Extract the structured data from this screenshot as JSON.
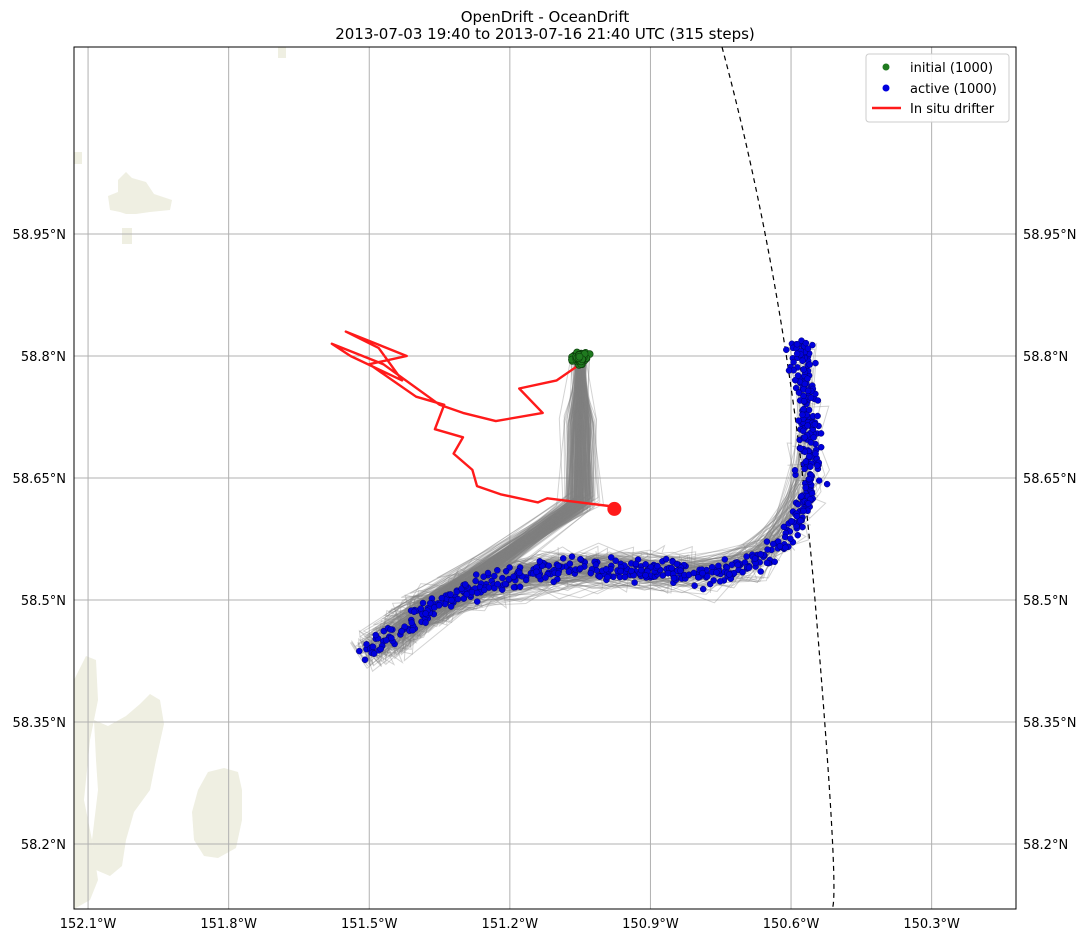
{
  "title": "OpenDrift - OceanDrift",
  "subtitle": "2013-07-03 19:40 to 2013-07-16 21:40 UTC (315 steps)",
  "colors": {
    "land": "#efefe2",
    "trajectory": "#808080",
    "initial": "#1f7a1f",
    "active": "#0000dd",
    "drifter": "#ff1a1a"
  },
  "chart_data": {
    "type": "scatter",
    "projection": "lon-lat map",
    "xlim": [
      -152.13,
      -150.12
    ],
    "ylim": [
      58.12,
      59.18
    ],
    "grid": true,
    "legend_placement": "top-right",
    "x_ticks": [
      {
        "value": -152.1,
        "label": "152.1°W"
      },
      {
        "value": -151.8,
        "label": "151.8°W"
      },
      {
        "value": -151.5,
        "label": "151.5°W"
      },
      {
        "value": -151.2,
        "label": "151.2°W"
      },
      {
        "value": -150.9,
        "label": "150.9°W"
      },
      {
        "value": -150.6,
        "label": "150.6°W"
      },
      {
        "value": -150.3,
        "label": "150.3°W"
      }
    ],
    "y_ticks": [
      {
        "value": 58.95,
        "label": "58.95°N"
      },
      {
        "value": 58.8,
        "label": "58.8°N"
      },
      {
        "value": 58.65,
        "label": "58.65°N"
      },
      {
        "value": 58.5,
        "label": "58.5°N"
      },
      {
        "value": 58.35,
        "label": "58.35°N"
      },
      {
        "value": 58.2,
        "label": "58.2°N"
      }
    ],
    "legend": [
      {
        "label": "initial (1000)",
        "kind": "marker",
        "color": "#1f7a1f"
      },
      {
        "label": "active (1000)",
        "kind": "marker",
        "color": "#0000dd"
      },
      {
        "label": "In situ drifter",
        "kind": "line",
        "color": "#ff1a1a"
      }
    ],
    "series": [
      {
        "name": "initial (1000)",
        "count": 1000,
        "center": [
          -151.05,
          58.798
        ],
        "spread": [
          0.025,
          0.012
        ]
      },
      {
        "name": "active (1000)",
        "count": 1000,
        "path": [
          [
            -151.52,
            58.43
          ],
          [
            -151.44,
            58.46
          ],
          [
            -151.35,
            58.5
          ],
          [
            -151.25,
            58.52
          ],
          [
            -151.12,
            58.535
          ],
          [
            -151.0,
            58.54
          ],
          [
            -150.88,
            58.535
          ],
          [
            -150.75,
            58.53
          ],
          [
            -150.66,
            58.55
          ],
          [
            -150.6,
            58.58
          ],
          [
            -150.56,
            58.64
          ],
          [
            -150.56,
            58.72
          ],
          [
            -150.58,
            58.82
          ]
        ]
      },
      {
        "name": "In situ drifter",
        "end_point": [
          -150.977,
          58.612
        ],
        "track": [
          [
            -151.05,
            58.79
          ],
          [
            -151.1,
            58.77
          ],
          [
            -151.18,
            58.76
          ],
          [
            -151.13,
            58.73
          ],
          [
            -151.23,
            58.72
          ],
          [
            -151.3,
            58.73
          ],
          [
            -151.35,
            58.74
          ],
          [
            -151.47,
            58.79
          ],
          [
            -151.58,
            58.815
          ],
          [
            -151.54,
            58.8
          ],
          [
            -151.43,
            58.77
          ],
          [
            -151.48,
            58.81
          ],
          [
            -151.55,
            58.83
          ],
          [
            -151.42,
            58.8
          ],
          [
            -151.5,
            58.79
          ],
          [
            -151.4,
            58.75
          ],
          [
            -151.34,
            58.74
          ],
          [
            -151.36,
            58.71
          ],
          [
            -151.3,
            58.7
          ],
          [
            -151.32,
            58.68
          ],
          [
            -151.28,
            58.66
          ],
          [
            -151.27,
            58.64
          ],
          [
            -151.22,
            58.63
          ],
          [
            -151.18,
            58.625
          ],
          [
            -151.14,
            58.62
          ],
          [
            -151.12,
            58.625
          ],
          [
            -151.05,
            58.62
          ],
          [
            -150.98,
            58.615
          ],
          [
            -150.977,
            58.612
          ]
        ]
      }
    ]
  }
}
